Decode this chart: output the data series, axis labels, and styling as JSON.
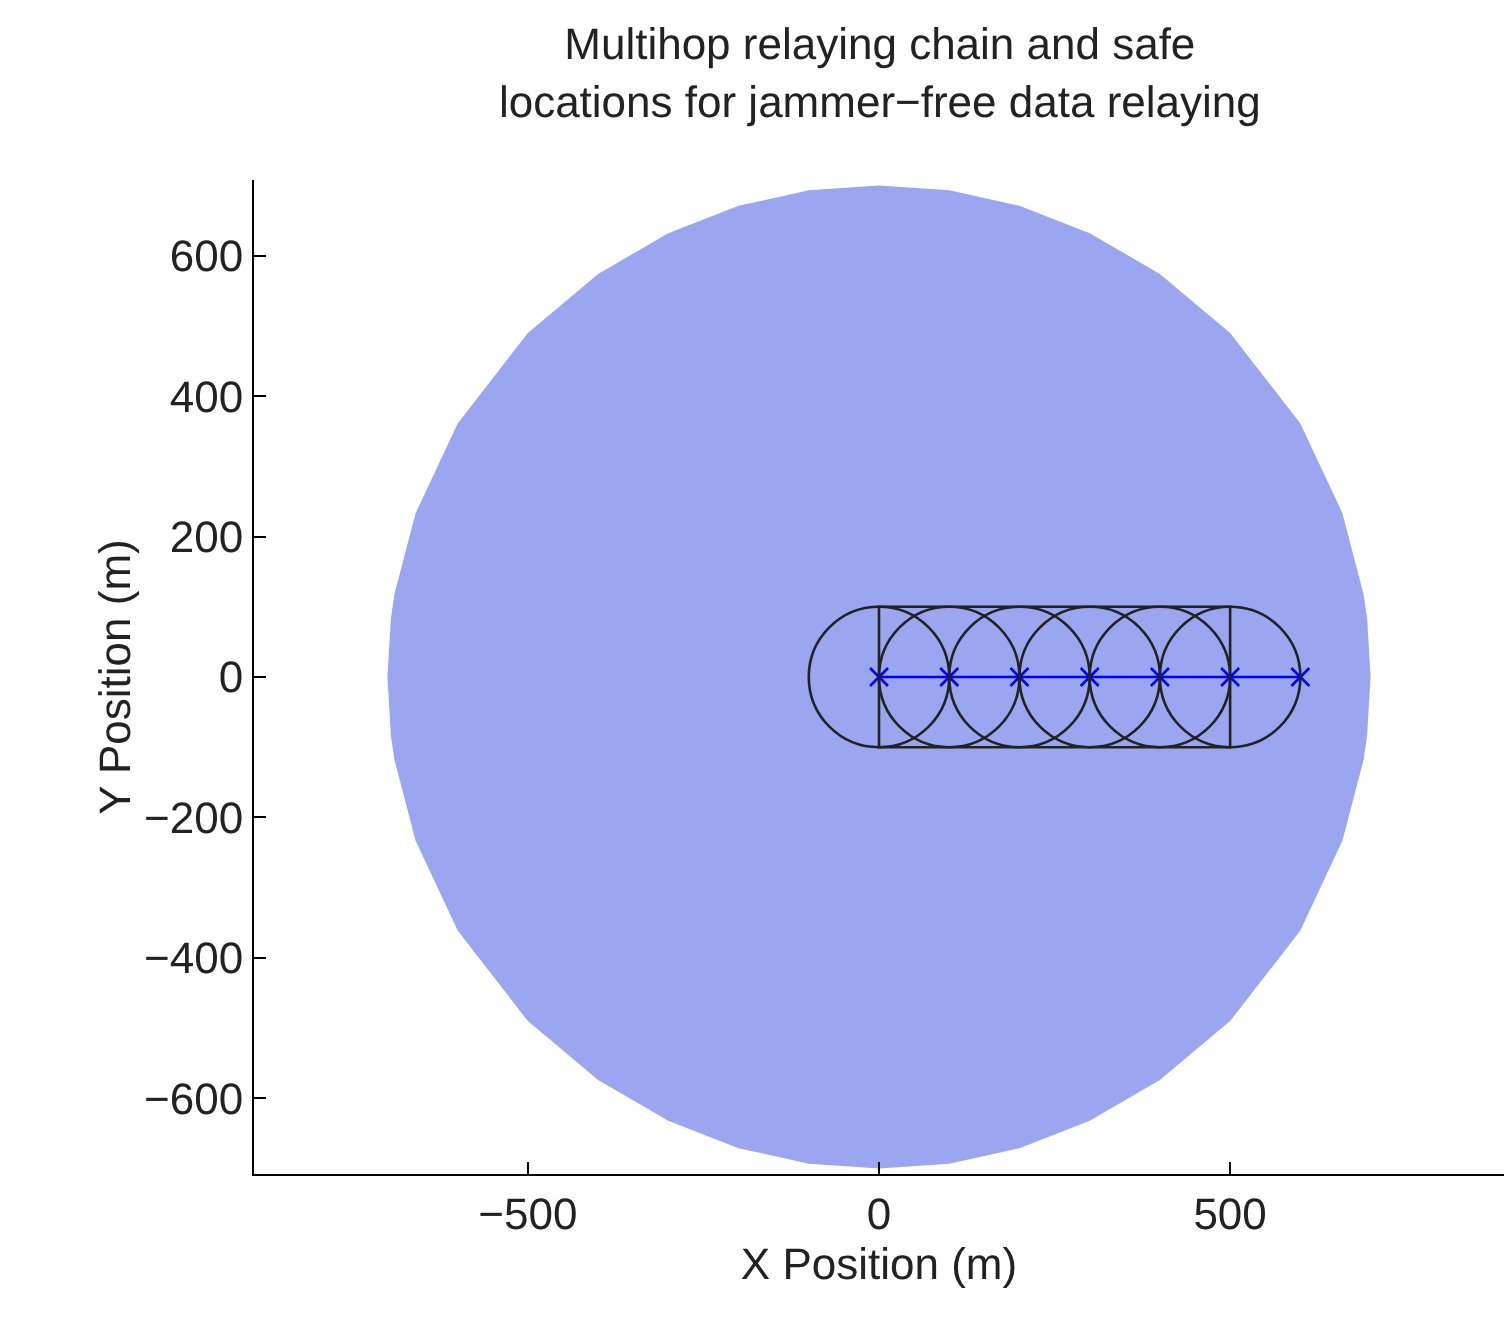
{
  "chart_data": {
    "type": "line",
    "title": "Multihop relaying chain and safe\nlocations for jammer−free data relaying",
    "xlabel": "X Position (m)",
    "ylabel": "Y Position (m)",
    "xlim": [
      -890,
      890
    ],
    "ylim": [
      -700,
      700
    ],
    "xticks": [
      -500,
      0,
      500
    ],
    "yticks": [
      -600,
      -400,
      -200,
      0,
      200,
      400,
      600
    ],
    "grid": false,
    "series": [
      {
        "type": "area",
        "color": "#9aa6f0",
        "x": [
          -700,
          -695,
          -690,
          -660,
          -600,
          -500,
          -400,
          -300,
          -200,
          -100,
          0,
          100,
          200,
          300,
          400,
          500,
          600,
          660,
          690,
          695,
          700
        ],
        "values": [
          0,
          84,
          118,
          233,
          361,
          490,
          574,
          632,
          671,
          693,
          700,
          693,
          671,
          632,
          574,
          490,
          361,
          233,
          118,
          84,
          0
        ]
      },
      {
        "type": "area",
        "color": "#9aa6f0",
        "x": [
          -700,
          -695,
          -690,
          -660,
          -600,
          -500,
          -400,
          -300,
          -200,
          -100,
          0,
          100,
          200,
          300,
          400,
          500,
          600,
          660,
          690,
          695,
          700
        ],
        "values": [
          0,
          -84,
          -118,
          -233,
          -361,
          -490,
          -574,
          -632,
          -671,
          -693,
          -700,
          -693,
          -671,
          -632,
          -574,
          -490,
          -361,
          -233,
          -118,
          -84,
          0
        ]
      },
      {
        "color": "#0000ff",
        "marker": "cross",
        "x": [
          0,
          100,
          200,
          300,
          400,
          500,
          600
        ],
        "values": [
          0,
          0,
          0,
          0,
          0,
          0,
          0
        ]
      }
    ]
  }
}
